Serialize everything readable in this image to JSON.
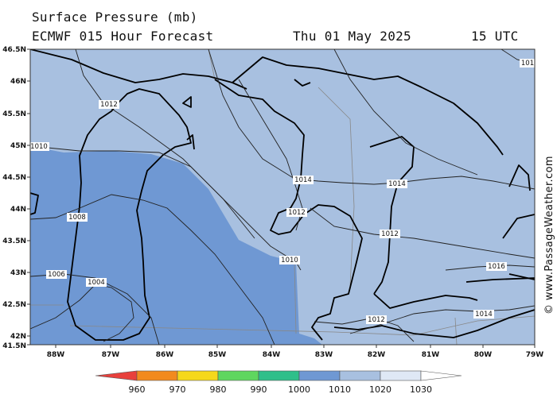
{
  "header": {
    "title": "Surface Pressure (mb)",
    "model": "ECMWF 015 Hour Forecast",
    "date": "Thu 01 May 2025",
    "time": "15 UTC"
  },
  "credit": "© www.PassageWeather.com",
  "colors": {
    "sea_1010_1020": "#a8c0e0",
    "sea_1000_1010": "#6f98d3",
    "land_outline": "#000000",
    "isobar": "#222222"
  },
  "axes": {
    "lat_labels": [
      "46.5N",
      "46N",
      "45.5N",
      "45N",
      "44.5N",
      "44N",
      "43.5N",
      "43N",
      "42.5N",
      "42N",
      "41.5N"
    ],
    "lon_labels": [
      "88W",
      "87W",
      "86W",
      "85W",
      "84W",
      "83W",
      "82W",
      "81W",
      "80W",
      "79W"
    ]
  },
  "isobars": [
    {
      "label": "1012"
    },
    {
      "label": "1010"
    },
    {
      "label": "1008"
    },
    {
      "label": "1006"
    },
    {
      "label": "1004"
    },
    {
      "label": "1014"
    },
    {
      "label": "1014"
    },
    {
      "label": "1012"
    },
    {
      "label": "1010"
    },
    {
      "label": "1012"
    },
    {
      "label": "1016"
    },
    {
      "label": "1014"
    },
    {
      "label": "1012"
    },
    {
      "label": "101"
    }
  ],
  "legend": {
    "labels": [
      "960",
      "970",
      "980",
      "990",
      "1000",
      "1010",
      "1020",
      "1030"
    ],
    "colors": [
      "#e8403c",
      "#f28a1e",
      "#f5d81b",
      "#5fd65f",
      "#2fbf8a",
      "#6f98d3",
      "#a8c0e0",
      "#dfe8f5",
      "#ffffff"
    ]
  }
}
